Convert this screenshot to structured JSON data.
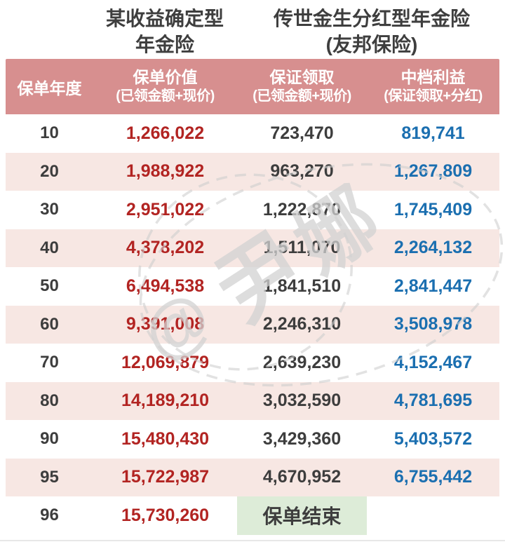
{
  "titles": {
    "product_a_line1": "某收益确定型",
    "product_a_line2": "年金险",
    "product_b_line1": "传世金生分红型年金险",
    "product_b_line2": "(友邦保险)"
  },
  "table": {
    "header": {
      "col_year": "保单年度",
      "col_pv_line1": "保单价值",
      "col_pv_line2": "(已领金额+现价)",
      "col_g_line1": "保证领取",
      "col_g_line2": "(已领金额+现价)",
      "col_mid_line1": "中档利益",
      "col_mid_line2": "(保证领取+分红)"
    },
    "rows": [
      {
        "year": "10",
        "policy_value": "1,266,022",
        "guaranteed": "723,470",
        "mid": "819,741"
      },
      {
        "year": "20",
        "policy_value": "1,988,922",
        "guaranteed": "963,270",
        "mid": "1,267,809"
      },
      {
        "year": "30",
        "policy_value": "2,951,022",
        "guaranteed": "1,222,870",
        "mid": "1,745,409"
      },
      {
        "year": "40",
        "policy_value": "4,378,202",
        "guaranteed": "1,511,070",
        "mid": "2,264,132"
      },
      {
        "year": "50",
        "policy_value": "6,494,538",
        "guaranteed": "1,841,510",
        "mid": "2,841,447"
      },
      {
        "year": "60",
        "policy_value": "9,391,008",
        "guaranteed": "2,246,310",
        "mid": "3,508,978"
      },
      {
        "year": "70",
        "policy_value": "12,069,879",
        "guaranteed": "2,639,230",
        "mid": "4,152,467"
      },
      {
        "year": "80",
        "policy_value": "14,189,210",
        "guaranteed": "3,032,590",
        "mid": "4,781,695"
      },
      {
        "year": "90",
        "policy_value": "15,480,430",
        "guaranteed": "3,429,360",
        "mid": "5,403,572"
      },
      {
        "year": "95",
        "policy_value": "15,722,987",
        "guaranteed": "4,670,952",
        "mid": "6,755,442"
      },
      {
        "year": "96",
        "policy_value": "15,730,260",
        "end": "保单结束"
      }
    ]
  },
  "watermark": {
    "text": "@尹娜",
    "char_at": "@",
    "char_1": "尹",
    "char_2": "娜"
  },
  "colors": {
    "header_bg": "#d78f8f",
    "row_alt_bg": "#f7e7e3",
    "value_red": "#b22422",
    "value_blue": "#1b6fb0",
    "text_dark": "#3d3d3d",
    "end_bg": "#ddecd8",
    "watermark": "#d2d2d2"
  },
  "chart_data": {
    "type": "table",
    "title": "某收益确定型年金险 vs 传世金生分红型年金险(友邦保险)",
    "columns": [
      "保单年度",
      "保单价值(已领金额+现价)",
      "保证领取(已领金额+现价)",
      "中档利益(保证领取+分红)"
    ],
    "rows": [
      [
        10,
        1266022,
        723470,
        819741
      ],
      [
        20,
        1988922,
        963270,
        1267809
      ],
      [
        30,
        2951022,
        1222870,
        1745409
      ],
      [
        40,
        4378202,
        1511070,
        2264132
      ],
      [
        50,
        6494538,
        1841510,
        2841447
      ],
      [
        60,
        9391008,
        2246310,
        3508978
      ],
      [
        70,
        12069879,
        2639230,
        4152467
      ],
      [
        80,
        14189210,
        3032590,
        4781695
      ],
      [
        90,
        15480430,
        3429360,
        5403572
      ],
      [
        95,
        15722987,
        4670952,
        6755442
      ],
      [
        96,
        15730260,
        "保单结束",
        "保单结束"
      ]
    ],
    "notes": "row 96: columns 3-4 merged into green cell labelled 保单结束 (policy ends)"
  }
}
